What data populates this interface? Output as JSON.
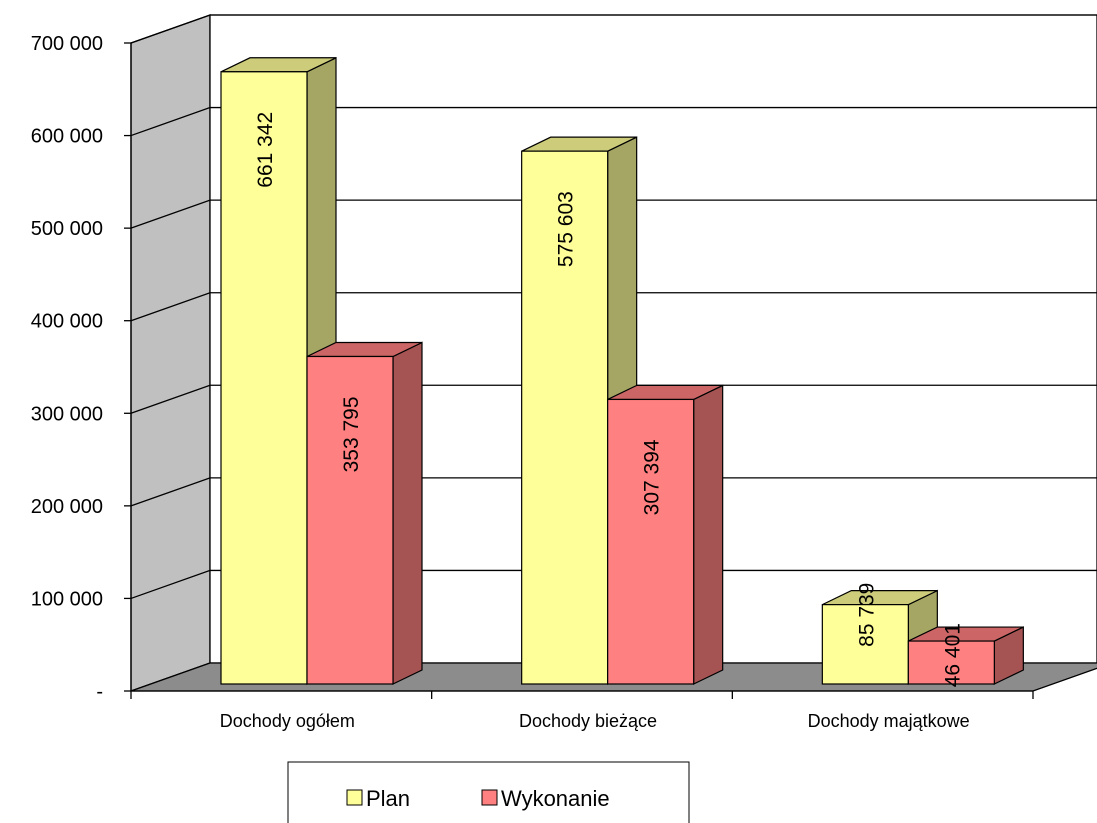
{
  "chart_data": {
    "type": "bar",
    "title": "",
    "xlabel": "",
    "ylabel": "",
    "categories": [
      "Dochody ogółem",
      "Dochody bieżące",
      "Dochody majątkowe"
    ],
    "series": [
      {
        "name": "Plan",
        "values": [
          661342,
          575603,
          85739
        ],
        "labels": [
          "661 342",
          "575 603",
          "85 739"
        ]
      },
      {
        "name": "Wykonanie",
        "values": [
          353795,
          307394,
          46401
        ],
        "labels": [
          "353 795",
          "307 394",
          "46 401"
        ]
      }
    ],
    "ylim": [
      0,
      700000
    ],
    "yticks": [
      0,
      100000,
      200000,
      300000,
      400000,
      500000,
      600000,
      700000
    ],
    "ytick_labels": [
      "-",
      "100 000",
      "200 000",
      "300 000",
      "400 000",
      "500 000",
      "600 000",
      "700 000"
    ],
    "grid": true,
    "legend_position": "bottom",
    "three_d": true
  },
  "colors": {
    "plan_front": "#ffff99",
    "plan_side": "#a6a664",
    "plan_top": "#cccc7a",
    "wykonanie_front": "#ff8080",
    "wykonanie_side": "#a65353",
    "wykonanie_top": "#cc6666",
    "wall": "#c0c0c0",
    "floor": "#8c8c8c"
  }
}
